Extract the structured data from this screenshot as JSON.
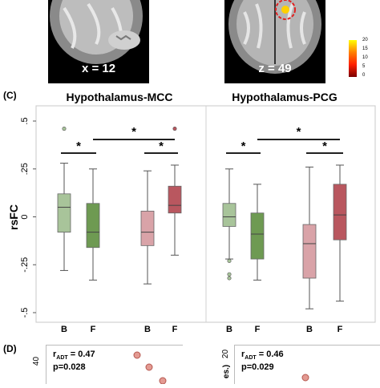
{
  "panel_top": {
    "left_slice_label": "x = 12",
    "right_slice_label": "z = 49",
    "colorbar_ticks": [
      "20",
      "15",
      "10",
      "5",
      "0"
    ]
  },
  "panel_c": {
    "label": "(C)",
    "ylabel": "rsFC",
    "yticks": [
      ".5",
      ".25",
      "0",
      "-.25",
      "-.5"
    ],
    "significance_marker": "*"
  },
  "panel_d": {
    "label": "(D)",
    "left": {
      "r_prefix": "r",
      "r_sub": "ADT",
      "r_value": " = 0.47",
      "p_text": "p=0.028",
      "ytick": "40"
    },
    "right": {
      "r_prefix": "r",
      "r_sub": "ADT",
      "r_value": " = 0.46",
      "p_text": "p=0.029",
      "ytick": "20",
      "yaxis_fragment": "es.)"
    }
  },
  "colors": {
    "light_green": "#a8c49a",
    "dark_green": "#6e9a52",
    "light_red": "#d9a3a8",
    "dark_red": "#b9575f"
  },
  "chart_data": {
    "type": "box",
    "ylabel": "rsFC",
    "ylim": [
      -0.5,
      0.5
    ],
    "groups": [
      {
        "title": "Hypothalamus-MCC",
        "categories": [
          "B",
          "F",
          "B",
          "F"
        ],
        "boxes": [
          {
            "color": "light_green",
            "min": -0.28,
            "q1": -0.08,
            "median": 0.05,
            "q3": 0.12,
            "max": 0.28,
            "outliers": [
              0.46
            ]
          },
          {
            "color": "dark_green",
            "min": -0.33,
            "q1": -0.16,
            "median": -0.08,
            "q3": 0.07,
            "max": 0.25,
            "outliers": []
          },
          {
            "color": "light_red",
            "min": -0.35,
            "q1": -0.15,
            "median": -0.08,
            "q3": 0.03,
            "max": 0.24,
            "outliers": []
          },
          {
            "color": "dark_red",
            "min": -0.2,
            "q1": 0.02,
            "median": 0.06,
            "q3": 0.16,
            "max": 0.27,
            "outliers": [
              0.46
            ]
          }
        ],
        "comparisons": [
          [
            0,
            1
          ],
          [
            2,
            3
          ],
          [
            1,
            3
          ]
        ]
      },
      {
        "title": "Hypothalamus-PCG",
        "categories": [
          "B",
          "F",
          "B",
          "F"
        ],
        "boxes": [
          {
            "color": "light_green",
            "min": -0.22,
            "q1": -0.05,
            "median": 0.0,
            "q3": 0.07,
            "max": 0.25,
            "outliers": [
              -0.23,
              -0.3,
              -0.32
            ]
          },
          {
            "color": "dark_green",
            "min": -0.33,
            "q1": -0.22,
            "median": -0.09,
            "q3": 0.02,
            "max": 0.17,
            "outliers": []
          },
          {
            "color": "light_red",
            "min": -0.48,
            "q1": -0.32,
            "median": -0.14,
            "q3": -0.04,
            "max": 0.26,
            "outliers": []
          },
          {
            "color": "dark_red",
            "min": -0.44,
            "q1": -0.12,
            "median": 0.01,
            "q3": 0.17,
            "max": 0.27,
            "outliers": []
          }
        ],
        "comparisons": [
          [
            0,
            1
          ],
          [
            2,
            3
          ],
          [
            1,
            3
          ]
        ]
      }
    ]
  }
}
